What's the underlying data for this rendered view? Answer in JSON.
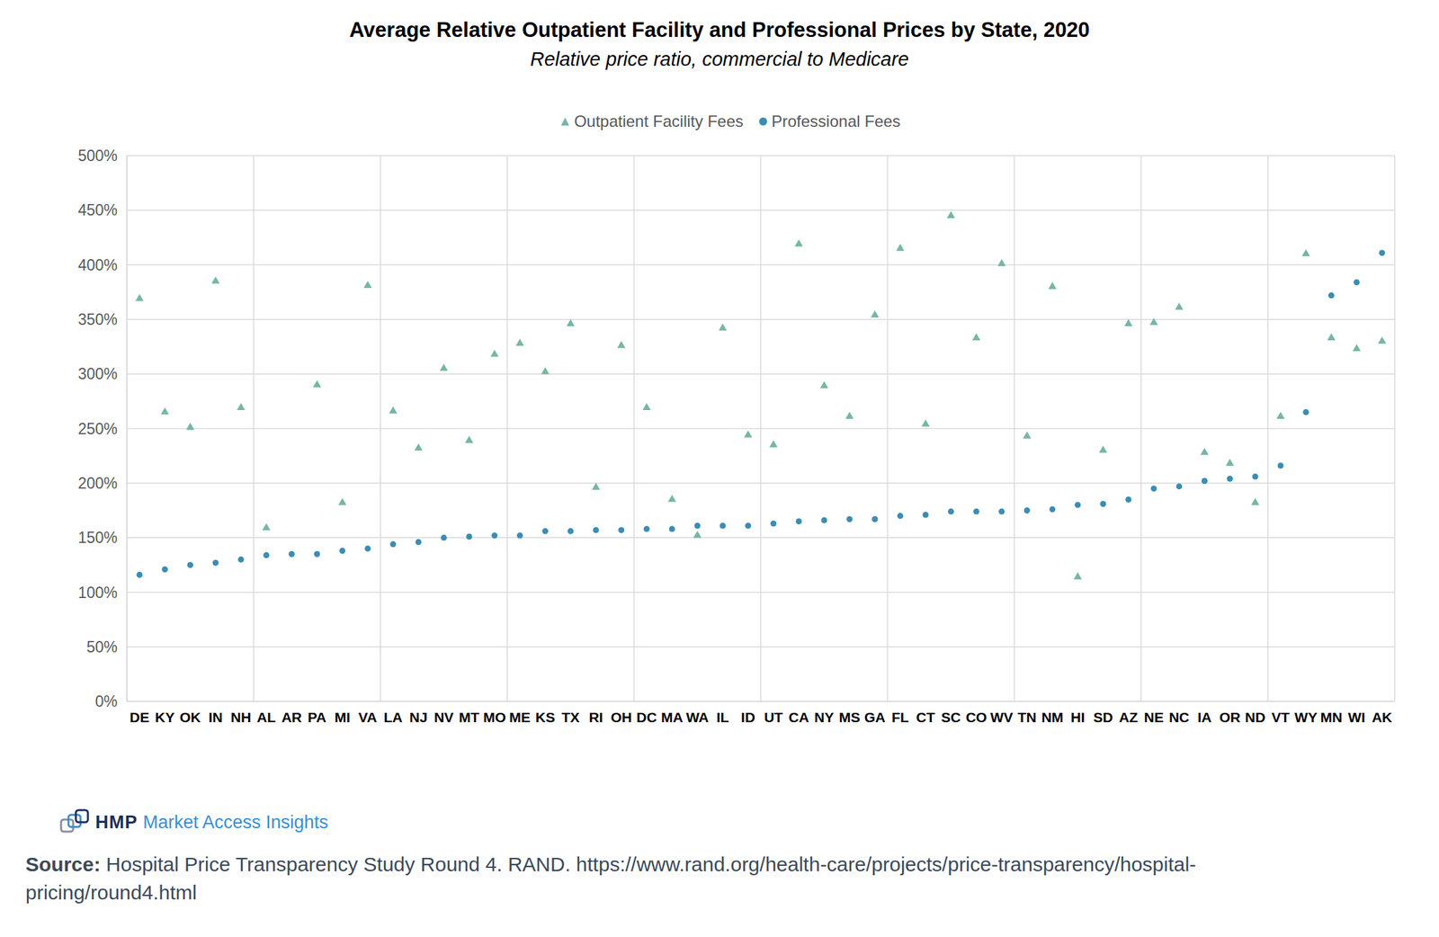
{
  "chart_data": {
    "type": "scatter",
    "title": "Average Relative Outpatient Facility and Professional Prices by State, 2020",
    "subtitle": "Relative price ratio, commercial to Medicare",
    "categories": [
      "DE",
      "KY",
      "OK",
      "IN",
      "NH",
      "AL",
      "AR",
      "PA",
      "MI",
      "VA",
      "LA",
      "NJ",
      "NV",
      "MT",
      "MO",
      "ME",
      "KS",
      "TX",
      "RI",
      "OH",
      "DC",
      "MA",
      "WA",
      "IL",
      "ID",
      "UT",
      "CA",
      "NY",
      "MS",
      "GA",
      "FL",
      "CT",
      "SC",
      "CO",
      "WV",
      "TN",
      "NM",
      "HI",
      "SD",
      "AZ",
      "NE",
      "NC",
      "IA",
      "OR",
      "ND",
      "VT",
      "WY",
      "MN",
      "WI",
      "AK"
    ],
    "series": [
      {
        "name": "Outpatient Facility Fees",
        "color": "#76b6a7",
        "marker": "triangle",
        "values": [
          369,
          265,
          251,
          385,
          269,
          159,
          null,
          290,
          182,
          381,
          266,
          232,
          305,
          239,
          318,
          328,
          302,
          346,
          196,
          326,
          269,
          185,
          152,
          342,
          244,
          235,
          419,
          289,
          261,
          354,
          415,
          254,
          445,
          333,
          401,
          243,
          380,
          114,
          230,
          346,
          347,
          361,
          228,
          218,
          182,
          261,
          410,
          333,
          323,
          330
        ]
      },
      {
        "name": "Professional Fees",
        "color": "#3a8db5",
        "marker": "circle",
        "values": [
          116,
          121,
          125,
          127,
          130,
          134,
          135,
          135,
          138,
          140,
          144,
          146,
          150,
          151,
          152,
          152,
          156,
          156,
          157,
          157,
          158,
          158,
          161,
          161,
          161,
          163,
          165,
          166,
          167,
          167,
          170,
          171,
          174,
          174,
          174,
          175,
          176,
          180,
          181,
          185,
          195,
          197,
          202,
          204,
          206,
          216,
          265,
          372,
          384,
          411
        ]
      }
    ],
    "ylim": [
      0,
      500
    ],
    "yticks": [
      {
        "value": 0,
        "label": "0%"
      },
      {
        "value": 50,
        "label": "50%"
      },
      {
        "value": 100,
        "label": "100%"
      },
      {
        "value": 150,
        "label": "150%"
      },
      {
        "value": 200,
        "label": "200%"
      },
      {
        "value": 250,
        "label": "250%"
      },
      {
        "value": 300,
        "label": "300%"
      },
      {
        "value": 350,
        "label": "350%"
      },
      {
        "value": 400,
        "label": "400%"
      },
      {
        "value": 450,
        "label": "450%"
      },
      {
        "value": 500,
        "label": "500%"
      }
    ],
    "grid": true,
    "legend": "top",
    "annotations": [
      "HMP Market Access Insights",
      "Source: Hospital Price Transparency Study Round 4. RAND. https://www.rand.org/health-care/projects/price-transparency/hospital-pricing/round4.html"
    ]
  }
}
